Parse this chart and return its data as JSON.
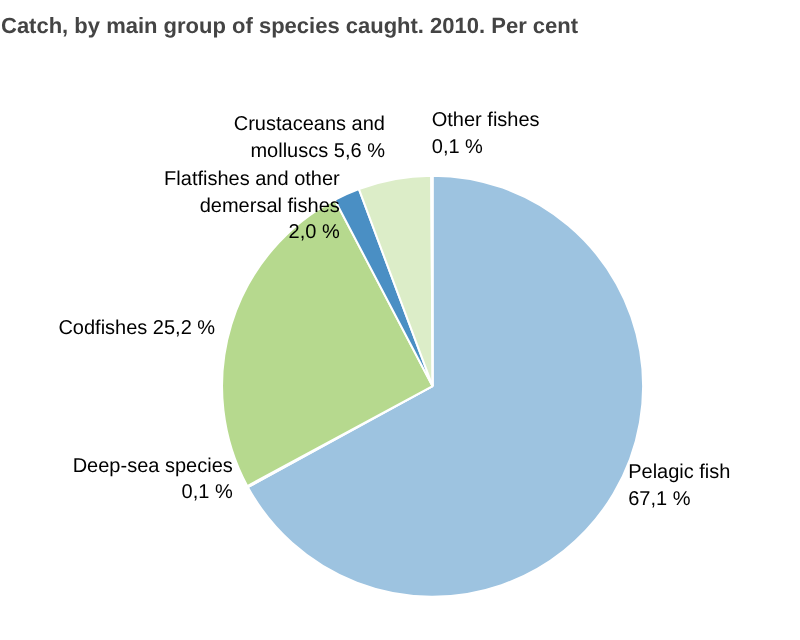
{
  "chart_data": {
    "type": "pie",
    "title": "Catch, by main group of species caught. 2010. Per cent",
    "categories": [
      "Pelagic fish",
      "Deep-sea species",
      "Codfishes",
      "Flatfishes and other demersal fishes",
      "Crustaceans and molluscs",
      "Other fishes"
    ],
    "values": [
      67.1,
      0.1,
      25.2,
      2.0,
      5.6,
      0.1
    ],
    "value_labels": [
      "67,1 %",
      "0,1 %",
      "25,2 %",
      "2,0 %",
      "5,6 %",
      "0,1 %"
    ],
    "colors": [
      "#9dc3e0",
      "#1f5f99",
      "#b6d98e",
      "#4a8fc4",
      "#dcedc8",
      "#8b3a1a"
    ]
  }
}
